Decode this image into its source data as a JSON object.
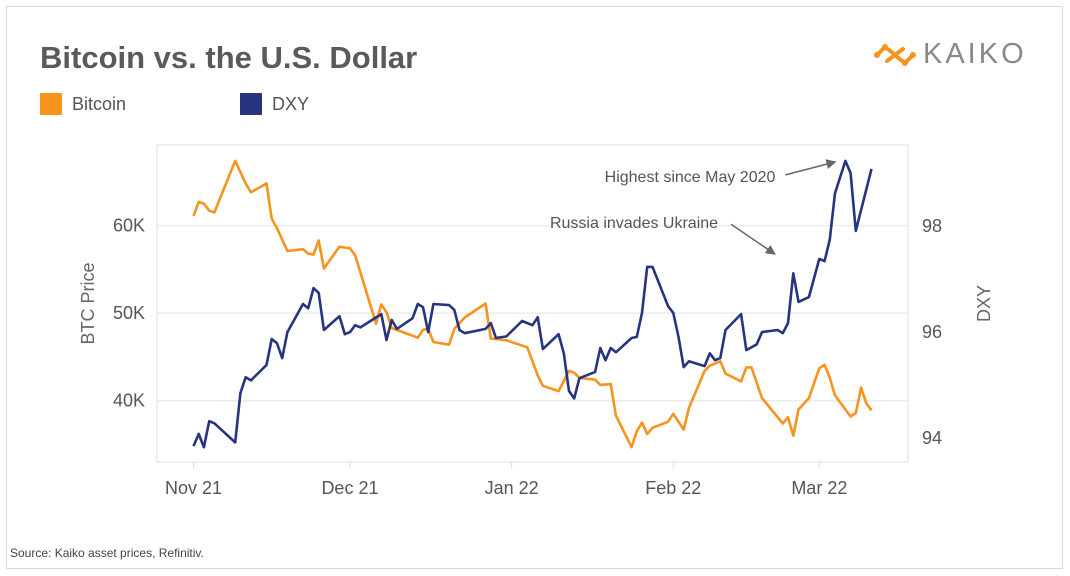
{
  "title": "Bitcoin vs. the U.S. Dollar",
  "logo": {
    "text": "KAIKO",
    "color": "#F7931E"
  },
  "source": "Source: Kaiko asset prices, Refinitiv.",
  "chart_data": {
    "type": "line",
    "title": "Bitcoin vs. the U.S. Dollar",
    "x_unit": "days since 2021-11-01",
    "xlim": [
      -7,
      137
    ],
    "x_ticks": [
      {
        "label": "Nov 21",
        "day": 0
      },
      {
        "label": "Dec 21",
        "day": 30
      },
      {
        "label": "Jan 22",
        "day": 61
      },
      {
        "label": "Feb 22",
        "day": 92
      },
      {
        "label": "Mar 22",
        "day": 120
      }
    ],
    "y_left": {
      "label": "BTC Price",
      "lim": [
        33,
        69.2
      ],
      "unit": "K USD",
      "ticks": [
        {
          "label": "40K",
          "value": 40
        },
        {
          "label": "50K",
          "value": 50
        },
        {
          "label": "60K",
          "value": 60
        }
      ]
    },
    "y_right": {
      "label": "DXY",
      "lim": [
        93.55,
        99.53
      ],
      "ticks": [
        {
          "label": "94",
          "value": 94
        },
        {
          "label": "96",
          "value": 96
        },
        {
          "label": "98",
          "value": 98
        }
      ]
    },
    "grid": true,
    "legend_position": "top-left",
    "series": [
      {
        "name": "Bitcoin",
        "axis": "left",
        "color": "#F7931E",
        "x": [
          0,
          1,
          2,
          3,
          4,
          8,
          9,
          10,
          11,
          14,
          15,
          16,
          18,
          21,
          22,
          23,
          24,
          25,
          28,
          29,
          30,
          31,
          35,
          36,
          37,
          38,
          43,
          44,
          45,
          46,
          49,
          50,
          52,
          56,
          57,
          60,
          64,
          66,
          67,
          70,
          72,
          73,
          74,
          77,
          78,
          80,
          81,
          84,
          85,
          86,
          87,
          88,
          91,
          92,
          94,
          95,
          98,
          99,
          101,
          102,
          105,
          106,
          107,
          109,
          113,
          114,
          115,
          116,
          118,
          120,
          121,
          122,
          123,
          126,
          127,
          128,
          129,
          130
        ],
        "values": [
          61.1,
          62.7,
          62.5,
          61.7,
          61.5,
          67.4,
          66.1,
          64.8,
          63.8,
          64.8,
          60.8,
          59.7,
          57.1,
          57.3,
          56.8,
          56.7,
          58.3,
          55.1,
          57.6,
          57.5,
          57.4,
          56.6,
          48.8,
          51.0,
          50.1,
          48.3,
          47.2,
          48.1,
          48.2,
          46.7,
          46.4,
          48.2,
          49.5,
          51.1,
          47.1,
          46.9,
          46.1,
          42.9,
          41.7,
          41.1,
          43.4,
          43.2,
          42.6,
          42.4,
          41.8,
          41.9,
          38.3,
          34.7,
          36.5,
          37.5,
          36.2,
          36.9,
          37.6,
          38.5,
          36.7,
          39.2,
          43.4,
          44.0,
          44.5,
          43.1,
          42.2,
          43.8,
          43.8,
          40.3,
          37.4,
          38.1,
          36.0,
          39.0,
          40.3,
          43.7,
          44.1,
          42.6,
          40.6,
          38.2,
          38.6,
          41.5,
          39.7,
          38.9
        ]
      },
      {
        "name": "DXY",
        "axis": "right",
        "color": "#27347F",
        "x": [
          0,
          1,
          2,
          3,
          4,
          8,
          9,
          10,
          11,
          14,
          15,
          16,
          17,
          18,
          21,
          22,
          23,
          24,
          25,
          28,
          29,
          30,
          31,
          32,
          36,
          37,
          38,
          39,
          42,
          43,
          44,
          45,
          46,
          49,
          50,
          51,
          52,
          56,
          57,
          58,
          60,
          63,
          65,
          66,
          67,
          70,
          71,
          72,
          73,
          74,
          77,
          78,
          79,
          80,
          81,
          84,
          85,
          86,
          87,
          88,
          91,
          92,
          93,
          94,
          95,
          98,
          99,
          100,
          101,
          102,
          105,
          106,
          108,
          109,
          112,
          113,
          114,
          115,
          116,
          118,
          120,
          121,
          122,
          123,
          125,
          126,
          127,
          130
        ],
        "values": [
          93.85,
          94.08,
          93.83,
          94.32,
          94.28,
          93.92,
          94.85,
          95.15,
          95.09,
          95.38,
          95.87,
          95.79,
          95.51,
          96.0,
          96.53,
          96.45,
          96.83,
          96.74,
          96.04,
          96.3,
          95.96,
          96.0,
          96.13,
          96.09,
          96.34,
          95.85,
          96.23,
          96.06,
          96.26,
          96.53,
          96.47,
          96.0,
          96.53,
          96.51,
          96.42,
          96.04,
          95.98,
          96.06,
          96.17,
          95.89,
          95.92,
          96.21,
          96.13,
          96.28,
          95.68,
          95.96,
          95.6,
          94.89,
          94.75,
          95.13,
          95.25,
          95.7,
          95.47,
          95.7,
          95.62,
          95.89,
          95.91,
          96.36,
          97.23,
          97.23,
          96.49,
          96.36,
          95.91,
          95.34,
          95.45,
          95.36,
          95.6,
          95.47,
          95.51,
          96.04,
          96.34,
          95.66,
          95.77,
          96.0,
          96.04,
          95.98,
          96.17,
          97.11,
          96.57,
          96.66,
          97.38,
          97.34,
          97.75,
          98.62,
          99.23,
          99.0,
          97.91,
          99.08
        ]
      }
    ],
    "annotations": [
      {
        "text": "Highest since May 2020",
        "day": 125,
        "value": 99.25,
        "axis": "right"
      },
      {
        "text": "Russia invades Ukraine",
        "day": 114,
        "value": 97.3,
        "axis": "right"
      }
    ]
  }
}
